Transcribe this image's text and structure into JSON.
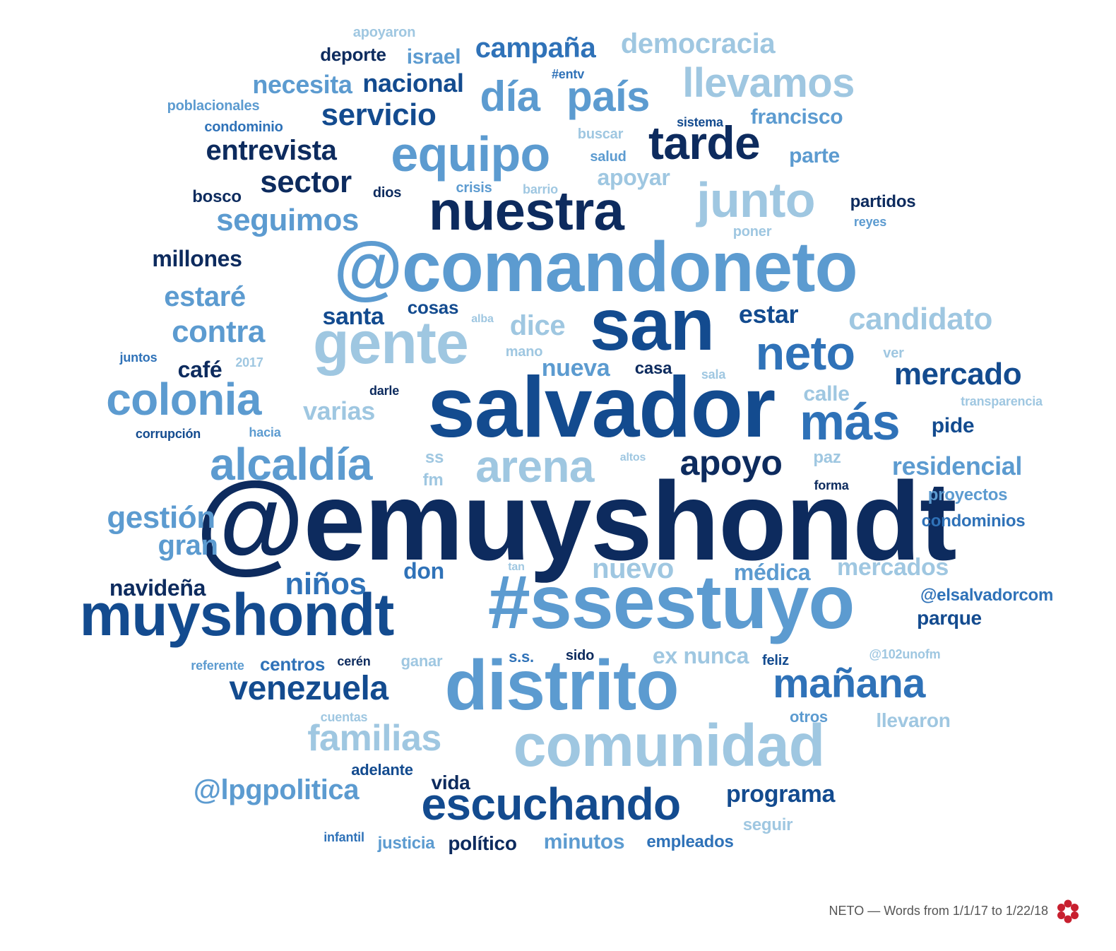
{
  "palette": {
    "darkest": "#0d2b5e",
    "dark": "#134b8f",
    "mid": "#2f72b8",
    "light": "#5c9bd0",
    "pale": "#9fc7e1",
    "faint": "#b8d6ea"
  },
  "words": [
    {
      "text": "@emuyshondt",
      "color": "darkest"
    },
    {
      "text": "#ssestuyo",
      "color": "light"
    },
    {
      "text": "salvador",
      "color": "dark"
    },
    {
      "text": "@comandoneto",
      "color": "light"
    },
    {
      "text": "san",
      "color": "dark"
    },
    {
      "text": "distrito",
      "color": "light"
    },
    {
      "text": "comunidad",
      "color": "pale"
    },
    {
      "text": "muyshondt",
      "color": "dark"
    },
    {
      "text": "nuestra",
      "color": "darkest"
    },
    {
      "text": "gente",
      "color": "pale"
    },
    {
      "text": "equipo",
      "color": "light"
    },
    {
      "text": "junto",
      "color": "pale"
    },
    {
      "text": "escuchando",
      "color": "dark"
    },
    {
      "text": "alcaldía",
      "color": "light"
    },
    {
      "text": "colonia",
      "color": "light"
    },
    {
      "text": "arena",
      "color": "pale"
    },
    {
      "text": "más",
      "color": "mid"
    },
    {
      "text": "neto",
      "color": "mid"
    },
    {
      "text": "tarde",
      "color": "darkest"
    },
    {
      "text": "país",
      "color": "light"
    },
    {
      "text": "día",
      "color": "light"
    },
    {
      "text": "llevamos",
      "color": "pale"
    },
    {
      "text": "mañana",
      "color": "mid"
    },
    {
      "text": "familias",
      "color": "pale"
    },
    {
      "text": "venezuela",
      "color": "dark"
    },
    {
      "text": "apoyo",
      "color": "darkest"
    },
    {
      "text": "@lpgpolitica",
      "color": "light"
    },
    {
      "text": "seguimos",
      "color": "light"
    },
    {
      "text": "candidato",
      "color": "pale"
    },
    {
      "text": "niños",
      "color": "mid"
    },
    {
      "text": "contra",
      "color": "light"
    },
    {
      "text": "gestión",
      "color": "light"
    },
    {
      "text": "mercado",
      "color": "dark"
    },
    {
      "text": "servicio",
      "color": "dark"
    },
    {
      "text": "sector",
      "color": "darkest"
    },
    {
      "text": "campaña",
      "color": "mid"
    },
    {
      "text": "entrevista",
      "color": "darkest"
    },
    {
      "text": "estaré",
      "color": "light"
    },
    {
      "text": "gran",
      "color": "light"
    },
    {
      "text": "dice",
      "color": "pale"
    },
    {
      "text": "democracia",
      "color": "pale"
    },
    {
      "text": "nacional",
      "color": "dark"
    },
    {
      "text": "necesita",
      "color": "light"
    },
    {
      "text": "varias",
      "color": "pale"
    },
    {
      "text": "nuevo",
      "color": "pale"
    },
    {
      "text": "residencial",
      "color": "light"
    },
    {
      "text": "programa",
      "color": "dark"
    },
    {
      "text": "estar",
      "color": "dark"
    },
    {
      "text": "santa",
      "color": "dark"
    },
    {
      "text": "nueva",
      "color": "light"
    },
    {
      "text": "apoyar",
      "color": "pale"
    },
    {
      "text": "millones",
      "color": "darkest"
    },
    {
      "text": "navideña",
      "color": "darkest"
    },
    {
      "text": "mercados",
      "color": "pale"
    },
    {
      "text": "café",
      "color": "darkest"
    },
    {
      "text": "israel",
      "color": "light"
    },
    {
      "text": "francisco",
      "color": "light"
    },
    {
      "text": "médica",
      "color": "light"
    },
    {
      "text": "ex nunca",
      "color": "pale"
    },
    {
      "text": "minutos",
      "color": "light"
    },
    {
      "text": "parte",
      "color": "light"
    },
    {
      "text": "deporte",
      "color": "darkest"
    },
    {
      "text": "calle",
      "color": "pale"
    },
    {
      "text": "pide",
      "color": "dark"
    },
    {
      "text": "don",
      "color": "mid"
    },
    {
      "text": "cosas",
      "color": "dark"
    },
    {
      "text": "vida",
      "color": "darkest"
    },
    {
      "text": "político",
      "color": "darkest"
    },
    {
      "text": "centros",
      "color": "mid"
    },
    {
      "text": "parque",
      "color": "dark"
    },
    {
      "text": "llevaron",
      "color": "pale"
    },
    {
      "text": "partidos",
      "color": "darkest"
    },
    {
      "text": "condominios",
      "color": "mid"
    },
    {
      "text": "proyectos",
      "color": "light"
    },
    {
      "text": "@elsalvadorcom",
      "color": "mid"
    },
    {
      "text": "empleados",
      "color": "mid"
    },
    {
      "text": "justicia",
      "color": "light"
    },
    {
      "text": "seguir",
      "color": "pale"
    },
    {
      "text": "adelante",
      "color": "dark"
    },
    {
      "text": "casa",
      "color": "darkest"
    },
    {
      "text": "bosco",
      "color": "darkest"
    },
    {
      "text": "otros",
      "color": "light"
    },
    {
      "text": "paz",
      "color": "pale"
    },
    {
      "text": "ss",
      "color": "pale"
    },
    {
      "text": "fm",
      "color": "pale"
    },
    {
      "text": "ganar",
      "color": "pale"
    },
    {
      "text": "s.s.",
      "color": "mid"
    },
    {
      "text": "sido",
      "color": "darkest"
    },
    {
      "text": "feliz",
      "color": "dark"
    },
    {
      "text": "cerén",
      "color": "darkest"
    },
    {
      "text": "crisis",
      "color": "light"
    },
    {
      "text": "salud",
      "color": "light"
    },
    {
      "text": "buscar",
      "color": "pale"
    },
    {
      "text": "sistema",
      "color": "dark"
    },
    {
      "text": "condominio",
      "color": "mid"
    },
    {
      "text": "poblacionales",
      "color": "light"
    },
    {
      "text": "#entv",
      "color": "mid"
    },
    {
      "text": "apoyaron",
      "color": "pale"
    },
    {
      "text": "dios",
      "color": "darkest"
    },
    {
      "text": "barrio",
      "color": "pale"
    },
    {
      "text": "poner",
      "color": "pale"
    },
    {
      "text": "reyes",
      "color": "light"
    },
    {
      "text": "alba",
      "color": "pale"
    },
    {
      "text": "mano",
      "color": "pale"
    },
    {
      "text": "ver",
      "color": "pale"
    },
    {
      "text": "sala",
      "color": "pale"
    },
    {
      "text": "juntos",
      "color": "mid"
    },
    {
      "text": "2017",
      "color": "pale"
    },
    {
      "text": "darle",
      "color": "darkest"
    },
    {
      "text": "corrupción",
      "color": "dark"
    },
    {
      "text": "hacia",
      "color": "light"
    },
    {
      "text": "transparencia",
      "color": "pale"
    },
    {
      "text": "altos",
      "color": "pale"
    },
    {
      "text": "forma",
      "color": "darkest"
    },
    {
      "text": "tan",
      "color": "pale"
    },
    {
      "text": "referente",
      "color": "light"
    },
    {
      "text": "@102unofm",
      "color": "pale"
    },
    {
      "text": "cuentas",
      "color": "pale"
    },
    {
      "text": "infantil",
      "color": "mid"
    }
  ],
  "footer": {
    "caption": "NETO — Words from 1/1/17 to 1/22/18",
    "logo": "red-flower-icon",
    "logo_color": "#c8202f"
  }
}
